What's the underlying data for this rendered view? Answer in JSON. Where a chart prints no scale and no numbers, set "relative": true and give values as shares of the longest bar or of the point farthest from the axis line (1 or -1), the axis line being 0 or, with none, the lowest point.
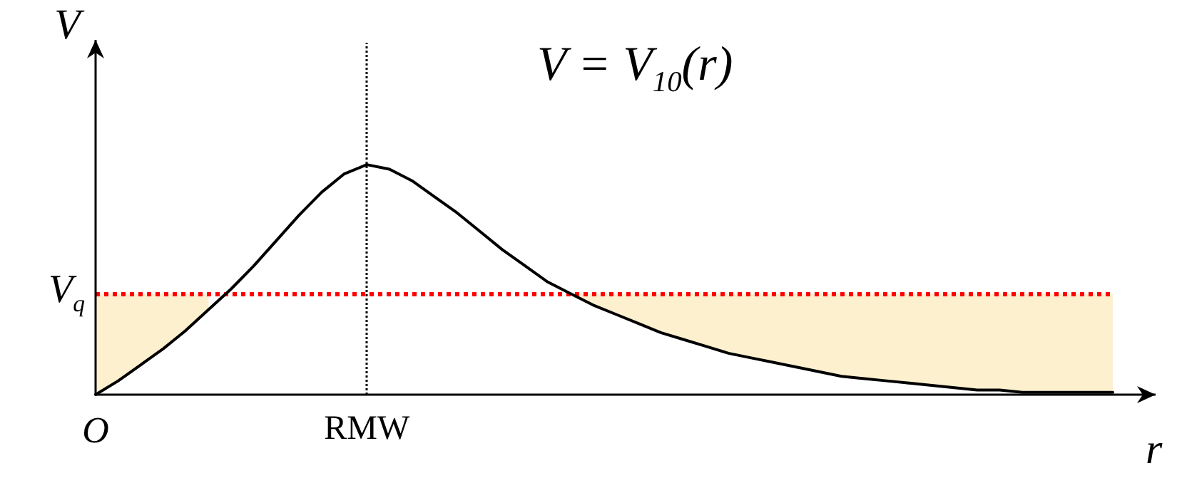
{
  "chart_data": {
    "type": "line",
    "title": "V = V$_{10}$(r)",
    "xlabel": "r",
    "ylabel": "V",
    "relative": true,
    "tick_labels": "x",
    "grid": false,
    "marker": "none",
    "line_style": "solid",
    "categories": [
      "O",
      null,
      null,
      null,
      null,
      null,
      null,
      null,
      null,
      null,
      null,
      null,
      "RMW",
      null,
      null,
      null,
      null,
      null,
      null,
      null,
      null,
      null,
      null,
      null,
      null,
      null,
      null,
      null,
      null,
      null,
      null,
      null,
      null,
      null,
      null,
      null,
      null,
      null,
      null,
      null,
      null,
      null,
      null,
      null,
      null,
      null
    ],
    "series": [
      {
        "color": "#000000",
        "values": [
          0,
          0.06,
          0.13,
          0.2,
          0.28,
          0.37,
          0.46,
          0.56,
          0.67,
          0.78,
          0.88,
          0.96,
          1,
          0.98,
          0.93,
          0.86,
          0.79,
          0.71,
          0.63,
          0.56,
          0.49,
          0.44,
          0.39,
          0.35,
          0.31,
          0.27,
          0.24,
          0.21,
          0.18,
          0.16,
          0.14,
          0.12,
          0.1,
          0.08,
          0.07,
          0.06,
          0.05,
          0.04,
          0.03,
          0.02,
          0.02,
          0.01,
          0.01,
          0.01,
          0.01,
          0.01
        ],
        "lower": [
          0,
          0.06,
          0.13,
          0.2,
          0.28,
          0.37,
          null,
          null,
          null,
          null,
          null,
          null,
          null,
          null,
          null,
          null,
          null,
          null,
          null,
          null,
          null,
          0.44,
          0.39,
          0.35,
          0.31,
          0.27,
          0.24,
          0.21,
          0.18,
          0.16,
          0.14,
          0.12,
          0.1,
          0.08,
          0.07,
          0.06,
          0.05,
          0.04,
          0.03,
          0.02,
          0.02,
          0.01,
          0.01,
          0.01,
          0.01,
          0.01
        ],
        "upper": [
          0.44,
          0.44,
          0.44,
          0.44,
          0.44,
          0.44,
          null,
          null,
          null,
          null,
          null,
          null,
          null,
          null,
          null,
          null,
          null,
          null,
          null,
          null,
          null,
          0.44,
          0.44,
          0.44,
          0.44,
          0.44,
          0.44,
          0.44,
          0.44,
          0.44,
          0.44,
          0.44,
          0.44,
          0.44,
          0.44,
          0.44,
          0.44,
          0.44,
          0.44,
          0.44,
          0.44,
          0.44,
          0.44,
          0.44,
          0.44,
          0.44
        ]
      }
    ],
    "ref_lines": [
      {
        "axis": "y",
        "value": 0.44,
        "label": "V$_{q}$",
        "color": "#ff0000",
        "line_style": "dotted"
      },
      {
        "axis": "x",
        "value": "RMW",
        "color": "#000000",
        "line_style": "dotted"
      }
    ]
  }
}
